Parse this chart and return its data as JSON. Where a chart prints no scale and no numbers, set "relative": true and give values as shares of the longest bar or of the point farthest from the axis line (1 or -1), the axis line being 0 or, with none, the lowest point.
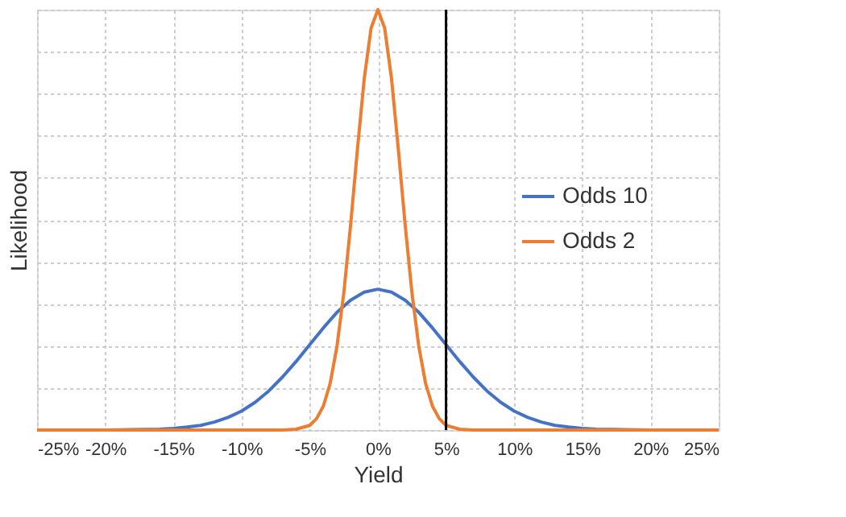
{
  "chart_data": {
    "type": "line",
    "relative": true,
    "xlabel": "Yield",
    "ylabel": "Likelihood",
    "xlim": [
      -25,
      25
    ],
    "xticks": [
      {
        "value": -25,
        "label": "-25%"
      },
      {
        "value": -20,
        "label": "-20%"
      },
      {
        "value": -15,
        "label": "-15%"
      },
      {
        "value": -10,
        "label": "-10%"
      },
      {
        "value": -5,
        "label": "-5%"
      },
      {
        "value": 0,
        "label": "0%"
      },
      {
        "value": 5,
        "label": "5%"
      },
      {
        "value": 10,
        "label": "10%"
      },
      {
        "value": 15,
        "label": "15%"
      },
      {
        "value": 20,
        "label": "20%"
      },
      {
        "value": 25,
        "label": "25%"
      }
    ],
    "grid": true,
    "legend": "right",
    "line_style": "solid",
    "marker": "none",
    "ref_lines": [
      {
        "axis": "x",
        "value": 5,
        "color": "#000000"
      }
    ],
    "series": [
      {
        "name": "Odds 10",
        "color": "#4472c4",
        "x": [
          -25,
          -20,
          -18,
          -16,
          -15,
          -14,
          -13,
          -12,
          -11,
          -10,
          -9,
          -8,
          -7,
          -6,
          -5,
          -4,
          -3,
          -2,
          -1,
          0,
          1,
          2,
          3,
          4,
          5,
          6,
          7,
          8,
          9,
          10,
          11,
          12,
          13,
          14,
          15,
          16,
          18,
          20,
          25
        ],
        "values": [
          0.0,
          0.0,
          0.001,
          0.002,
          0.004,
          0.007,
          0.011,
          0.019,
          0.03,
          0.045,
          0.066,
          0.093,
          0.126,
          0.163,
          0.203,
          0.243,
          0.28,
          0.309,
          0.328,
          0.335,
          0.328,
          0.309,
          0.28,
          0.243,
          0.203,
          0.163,
          0.126,
          0.093,
          0.066,
          0.045,
          0.03,
          0.019,
          0.011,
          0.007,
          0.004,
          0.002,
          0.001,
          0.0,
          0.0
        ]
      },
      {
        "name": "Odds 2",
        "color": "#ed7d31",
        "x": [
          -25,
          -10,
          -7,
          -6,
          -5,
          -4.5,
          -4,
          -3.5,
          -3,
          -2.5,
          -2,
          -1.5,
          -1,
          -0.5,
          0,
          0.5,
          1,
          1.5,
          2,
          2.5,
          3,
          3.5,
          4,
          4.5,
          5,
          6,
          7,
          10,
          25
        ],
        "values": [
          0.0,
          0.0,
          0.0,
          0.002,
          0.011,
          0.027,
          0.057,
          0.111,
          0.199,
          0.326,
          0.488,
          0.668,
          0.836,
          0.956,
          1.0,
          0.956,
          0.836,
          0.668,
          0.488,
          0.326,
          0.199,
          0.111,
          0.057,
          0.027,
          0.011,
          0.002,
          0.0,
          0.0,
          0.0
        ]
      }
    ]
  }
}
